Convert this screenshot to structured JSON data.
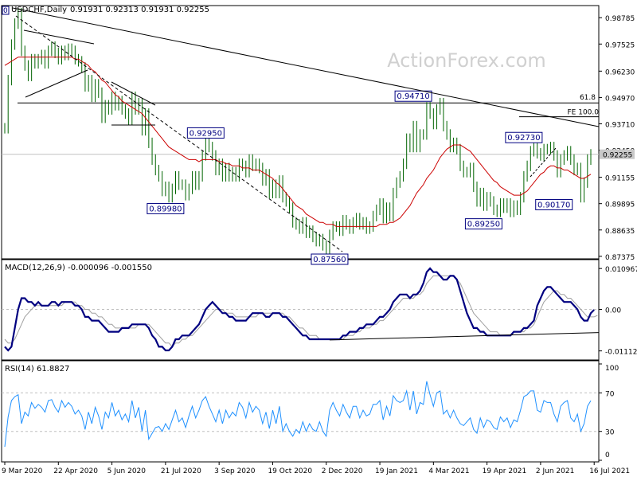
{
  "header": {
    "symbol": "USDCHF,Daily",
    "ohlc": "0.91931 0.92313 0.91931 0.92255"
  },
  "watermark": "ActionForex.com",
  "colors": {
    "price": "#006400",
    "ma": "#cc0000",
    "macd": "#000080",
    "signal": "#a0a0a0",
    "rsi": "#1e90ff",
    "grid": "#c0c0c0",
    "label_border": "#000080",
    "highlight": "#c8c8c8"
  },
  "chart_data": [
    {
      "type": "line",
      "panel": "price",
      "y_ticks": [
        "0.98785",
        "0.97525",
        "0.96230",
        "0.94970",
        "0.93710",
        "0.92450",
        "0.91155",
        "0.89895",
        "0.88635",
        "0.87375"
      ],
      "ylim": [
        0.8737,
        0.9925
      ],
      "current_label": "0.92255",
      "hlines": [
        {
          "value": 0.9471,
          "label": "61.8"
        },
        {
          "value": 0.9405,
          "label": "FE 100.0"
        },
        {
          "value": 0.92255,
          "label": ""
        }
      ],
      "annotations": [
        {
          "text": "0.92950",
          "x_index": 60,
          "y": 0.9295
        },
        {
          "text": "0.89980",
          "x_index": 48,
          "y": 0.8998
        },
        {
          "text": "0.87560",
          "x_index": 97,
          "y": 0.8756
        },
        {
          "text": "0.94710",
          "x_index": 122,
          "y": 0.9471
        },
        {
          "text": "0.92730",
          "x_index": 155,
          "y": 0.9273
        },
        {
          "text": "0.89250",
          "x_index": 143,
          "y": 0.8925
        },
        {
          "text": "0.90170",
          "x_index": 164,
          "y": 0.9017
        }
      ],
      "series": [
        {
          "values": [
            0.935,
            0.958,
            0.975,
            0.985,
            0.99,
            0.972,
            0.965,
            0.96,
            0.968,
            0.966,
            0.968,
            0.97,
            0.966,
            0.972,
            0.974,
            0.971,
            0.968,
            0.972,
            0.97,
            0.973,
            0.972,
            0.968,
            0.967,
            0.964,
            0.955,
            0.958,
            0.95,
            0.956,
            0.952,
            0.94,
            0.946,
            0.944,
            0.95,
            0.946,
            0.948,
            0.944,
            0.942,
            0.939,
            0.95,
            0.944,
            0.947,
            0.934,
            0.942,
            0.928,
            0.92,
            0.915,
            0.912,
            0.905,
            0.907,
            0.902,
            0.906,
            0.912,
            0.908,
            0.908,
            0.903,
            0.906,
            0.912,
            0.908,
            0.912,
            0.922,
            0.928,
            0.926,
            0.922,
            0.915,
            0.918,
            0.912,
            0.916,
            0.912,
            0.914,
            0.912,
            0.918,
            0.917,
            0.914,
            0.92,
            0.917,
            0.918,
            0.916,
            0.91,
            0.913,
            0.904,
            0.908,
            0.904,
            0.91,
            0.902,
            0.9,
            0.897,
            0.89,
            0.889,
            0.887,
            0.89,
            0.885,
            0.886,
            0.883,
            0.881,
            0.882,
            0.879,
            0.876,
            0.884,
            0.888,
            0.888,
            0.886,
            0.891,
            0.889,
            0.887,
            0.89,
            0.892,
            0.889,
            0.89,
            0.887,
            0.888,
            0.893,
            0.896,
            0.899,
            0.892,
            0.897,
            0.893,
            0.904,
            0.909,
            0.912,
            0.918,
            0.93,
            0.926,
            0.936,
            0.926,
            0.932,
            0.932,
            0.945,
            0.942,
            0.937,
            0.944,
            0.947,
            0.936,
            0.932,
            0.926,
            0.928,
            0.925,
            0.917,
            0.914,
            0.914,
            0.916,
            0.907,
            0.9,
            0.904,
            0.898,
            0.902,
            0.9,
            0.896,
            0.895,
            0.899,
            0.897,
            0.899,
            0.895,
            0.898,
            0.896,
            0.902,
            0.912,
            0.917,
            0.924,
            0.926,
            0.923,
            0.922,
            0.925,
            0.925,
            0.926,
            0.922,
            0.914,
            0.92,
            0.922,
            0.924,
            0.92,
            0.915,
            0.916,
            0.902,
            0.909,
            0.92,
            0.9225
          ]
        },
        {
          "values": [
            0.965,
            0.966,
            0.967,
            0.968,
            0.969,
            0.969,
            0.969,
            0.969,
            0.969,
            0.969,
            0.969,
            0.969,
            0.969,
            0.969,
            0.969,
            0.969,
            0.969,
            0.969,
            0.969,
            0.969,
            0.969,
            0.968,
            0.968,
            0.967,
            0.966,
            0.965,
            0.963,
            0.962,
            0.96,
            0.958,
            0.957,
            0.955,
            0.953,
            0.951,
            0.95,
            0.948,
            0.947,
            0.946,
            0.945,
            0.944,
            0.943,
            0.942,
            0.94,
            0.938,
            0.936,
            0.934,
            0.932,
            0.93,
            0.928,
            0.926,
            0.925,
            0.924,
            0.923,
            0.922,
            0.921,
            0.92,
            0.92,
            0.92,
            0.919,
            0.92,
            0.92,
            0.92,
            0.92,
            0.92,
            0.919,
            0.919,
            0.918,
            0.918,
            0.917,
            0.917,
            0.917,
            0.916,
            0.916,
            0.916,
            0.915,
            0.915,
            0.915,
            0.914,
            0.913,
            0.912,
            0.911,
            0.909,
            0.908,
            0.906,
            0.904,
            0.902,
            0.9,
            0.898,
            0.897,
            0.896,
            0.894,
            0.893,
            0.892,
            0.891,
            0.89,
            0.89,
            0.889,
            0.889,
            0.889,
            0.888,
            0.888,
            0.888,
            0.888,
            0.888,
            0.888,
            0.888,
            0.888,
            0.888,
            0.888,
            0.888,
            0.888,
            0.888,
            0.889,
            0.889,
            0.889,
            0.89,
            0.89,
            0.891,
            0.892,
            0.894,
            0.896,
            0.898,
            0.901,
            0.904,
            0.906,
            0.908,
            0.911,
            0.913,
            0.915,
            0.918,
            0.921,
            0.923,
            0.925,
            0.926,
            0.927,
            0.927,
            0.927,
            0.926,
            0.925,
            0.924,
            0.922,
            0.92,
            0.918,
            0.916,
            0.914,
            0.912,
            0.91,
            0.909,
            0.907,
            0.906,
            0.905,
            0.904,
            0.903,
            0.903,
            0.903,
            0.904,
            0.905,
            0.907,
            0.909,
            0.911,
            0.913,
            0.914,
            0.916,
            0.917,
            0.917,
            0.916,
            0.916,
            0.915,
            0.915,
            0.914,
            0.913,
            0.912,
            0.911,
            0.911,
            0.912,
            0.913
          ]
        }
      ]
    },
    {
      "type": "line",
      "panel": "macd",
      "title": "MACD(12,26,9) -0.000096 -0.001550",
      "y_ticks": [
        "0.010967",
        "0.00",
        "-0.011127"
      ],
      "ylim": [
        -0.0127,
        0.0125
      ],
      "trendline": {
        "from_index": 97,
        "from_y": -0.0082,
        "to_index": 178,
        "to_y": -0.0062
      },
      "series": [
        {
          "values": [
            -0.01,
            -0.011,
            -0.01,
            -0.005,
            0.0,
            0.003,
            0.003,
            0.002,
            0.002,
            0.001,
            0.002,
            0.001,
            0.001,
            0.001,
            0.002,
            0.002,
            0.001,
            0.002,
            0.002,
            0.002,
            0.002,
            0.001,
            0.001,
            0.0,
            -0.002,
            -0.002,
            -0.003,
            -0.003,
            -0.003,
            -0.004,
            -0.005,
            -0.006,
            -0.006,
            -0.006,
            -0.006,
            -0.005,
            -0.005,
            -0.005,
            -0.004,
            -0.004,
            -0.004,
            -0.004,
            -0.004,
            -0.005,
            -0.007,
            -0.008,
            -0.01,
            -0.01,
            -0.011,
            -0.011,
            -0.01,
            -0.008,
            -0.008,
            -0.007,
            -0.007,
            -0.007,
            -0.006,
            -0.005,
            -0.004,
            -0.002,
            0.0,
            0.001,
            0.002,
            0.001,
            0.0,
            -0.001,
            -0.001,
            -0.002,
            -0.002,
            -0.003,
            -0.003,
            -0.003,
            -0.003,
            -0.002,
            -0.001,
            -0.001,
            -0.001,
            -0.001,
            -0.002,
            -0.002,
            -0.001,
            -0.001,
            -0.001,
            -0.002,
            -0.002,
            -0.003,
            -0.004,
            -0.005,
            -0.006,
            -0.007,
            -0.007,
            -0.008,
            -0.008,
            -0.008,
            -0.008,
            -0.008,
            -0.008,
            -0.008,
            -0.008,
            -0.008,
            -0.008,
            -0.007,
            -0.007,
            -0.006,
            -0.006,
            -0.006,
            -0.005,
            -0.005,
            -0.004,
            -0.004,
            -0.004,
            -0.003,
            -0.002,
            -0.002,
            -0.001,
            0.0,
            0.002,
            0.003,
            0.004,
            0.004,
            0.004,
            0.003,
            0.004,
            0.004,
            0.005,
            0.007,
            0.01,
            0.011,
            0.01,
            0.01,
            0.009,
            0.008,
            0.008,
            0.009,
            0.009,
            0.008,
            0.005,
            0.002,
            -0.001,
            -0.003,
            -0.005,
            -0.005,
            -0.006,
            -0.006,
            -0.007,
            -0.007,
            -0.007,
            -0.007,
            -0.007,
            -0.007,
            -0.007,
            -0.007,
            -0.006,
            -0.006,
            -0.006,
            -0.005,
            -0.005,
            -0.004,
            -0.003,
            0.001,
            0.003,
            0.005,
            0.006,
            0.006,
            0.005,
            0.004,
            0.003,
            0.002,
            0.002,
            0.002,
            0.001,
            0.0,
            -0.002,
            -0.003,
            -0.003,
            -0.001,
            -0.0001
          ]
        },
        {
          "values": [
            -0.008,
            -0.009,
            -0.009,
            -0.008,
            -0.006,
            -0.004,
            -0.002,
            -0.001,
            0.0,
            0.001,
            0.001,
            0.001,
            0.001,
            0.001,
            0.001,
            0.001,
            0.001,
            0.001,
            0.002,
            0.002,
            0.002,
            0.002,
            0.001,
            0.001,
            0.0,
            0.0,
            -0.001,
            -0.001,
            -0.002,
            -0.002,
            -0.003,
            -0.004,
            -0.004,
            -0.005,
            -0.005,
            -0.005,
            -0.005,
            -0.005,
            -0.005,
            -0.005,
            -0.004,
            -0.004,
            -0.004,
            -0.004,
            -0.005,
            -0.006,
            -0.007,
            -0.008,
            -0.009,
            -0.009,
            -0.01,
            -0.009,
            -0.009,
            -0.008,
            -0.008,
            -0.007,
            -0.007,
            -0.006,
            -0.005,
            -0.004,
            -0.003,
            -0.002,
            -0.001,
            0.0,
            0.0,
            0.0,
            -0.001,
            -0.001,
            -0.001,
            -0.002,
            -0.002,
            -0.002,
            -0.002,
            -0.002,
            -0.002,
            -0.002,
            -0.001,
            -0.001,
            -0.001,
            -0.001,
            -0.001,
            -0.001,
            -0.001,
            -0.001,
            -0.002,
            -0.002,
            -0.003,
            -0.004,
            -0.005,
            -0.005,
            -0.006,
            -0.007,
            -0.007,
            -0.007,
            -0.008,
            -0.008,
            -0.008,
            -0.008,
            -0.008,
            -0.008,
            -0.008,
            -0.008,
            -0.007,
            -0.007,
            -0.007,
            -0.006,
            -0.006,
            -0.005,
            -0.005,
            -0.005,
            -0.004,
            -0.004,
            -0.003,
            -0.003,
            -0.002,
            -0.001,
            0.0,
            0.001,
            0.002,
            0.003,
            0.003,
            0.003,
            0.003,
            0.004,
            0.004,
            0.005,
            0.007,
            0.008,
            0.009,
            0.009,
            0.009,
            0.009,
            0.009,
            0.009,
            0.009,
            0.008,
            0.007,
            0.005,
            0.003,
            0.001,
            -0.001,
            -0.002,
            -0.003,
            -0.004,
            -0.005,
            -0.006,
            -0.006,
            -0.006,
            -0.007,
            -0.007,
            -0.007,
            -0.007,
            -0.006,
            -0.006,
            -0.006,
            -0.006,
            -0.005,
            -0.005,
            -0.004,
            -0.002,
            0.0,
            0.002,
            0.003,
            0.004,
            0.005,
            0.005,
            0.004,
            0.004,
            0.003,
            0.003,
            0.002,
            0.001,
            0.0,
            -0.001,
            -0.002,
            -0.002,
            -0.002,
            -0.0016
          ]
        }
      ]
    },
    {
      "type": "line",
      "panel": "rsi",
      "title": "RSI(14) 61.8827",
      "y_ticks": [
        "100",
        "70",
        "30",
        "0"
      ],
      "ylim": [
        0,
        100
      ],
      "levels": [
        70,
        30
      ],
      "x_tick_labels": [
        "9 Mar 2020",
        "22 Apr 2020",
        "5 Jun 2020",
        "21 Jul 2020",
        "3 Sep 2020",
        "19 Oct 2020",
        "2 Dec 2020",
        "19 Jan 2021",
        "4 Mar 2021",
        "19 Apr 2021",
        "2 Jun 2021",
        "16 Jul 2021"
      ],
      "x_tick_indices": [
        0,
        16,
        32,
        48,
        64,
        80,
        96,
        112,
        128,
        144,
        160,
        176
      ],
      "series": [
        {
          "values": [
            14,
            45,
            62,
            66,
            68,
            38,
            50,
            46,
            60,
            54,
            58,
            55,
            50,
            62,
            63,
            55,
            50,
            62,
            55,
            60,
            56,
            48,
            52,
            46,
            32,
            50,
            38,
            55,
            46,
            32,
            50,
            44,
            60,
            46,
            52,
            42,
            48,
            40,
            62,
            44,
            55,
            30,
            52,
            22,
            28,
            34,
            35,
            30,
            38,
            32,
            42,
            52,
            40,
            44,
            34,
            46,
            56,
            44,
            52,
            62,
            66,
            56,
            48,
            40,
            52,
            38,
            52,
            44,
            50,
            46,
            60,
            55,
            44,
            60,
            50,
            56,
            52,
            38,
            50,
            33,
            52,
            38,
            56,
            30,
            38,
            30,
            25,
            32,
            28,
            40,
            30,
            38,
            32,
            30,
            40,
            30,
            25,
            52,
            60,
            52,
            46,
            58,
            50,
            44,
            56,
            56,
            44,
            52,
            46,
            48,
            58,
            58,
            62,
            42,
            56,
            46,
            67,
            62,
            60,
            62,
            72,
            52,
            72,
            48,
            60,
            58,
            82,
            68,
            56,
            70,
            72,
            48,
            52,
            44,
            52,
            44,
            38,
            36,
            40,
            44,
            32,
            28,
            44,
            34,
            42,
            40,
            34,
            32,
            45,
            40,
            44,
            34,
            42,
            40,
            52,
            66,
            68,
            72,
            72,
            52,
            50,
            62,
            60,
            60,
            48,
            40,
            56,
            60,
            62,
            44,
            40,
            48,
            30,
            38,
            56,
            61.88
          ]
        }
      ]
    }
  ]
}
